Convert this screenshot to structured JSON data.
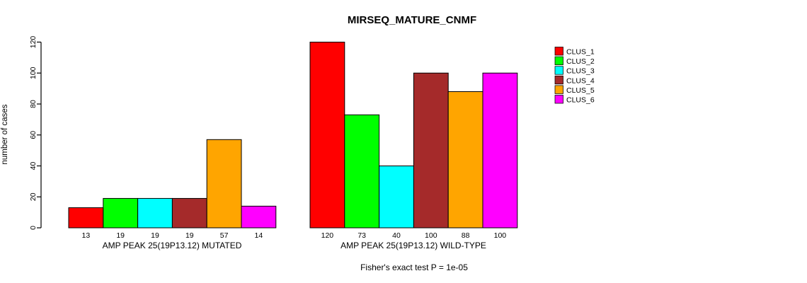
{
  "figure": {
    "title": "MIRSEQ_MATURE_CNMF",
    "ylabel": "number of cases",
    "footer": "Fisher's exact test P = 1e-05"
  },
  "chart_data": {
    "type": "bar",
    "title": "MIRSEQ_MATURE_CNMF",
    "xlabel": "",
    "ylabel": "number of cases",
    "ylim": [
      0,
      120
    ],
    "yticks": [
      0,
      20,
      40,
      60,
      80,
      100,
      120
    ],
    "grid": false,
    "legend_position": "right-outside",
    "series": [
      {
        "name": "CLUS_1",
        "color": "#FF0000"
      },
      {
        "name": "CLUS_2",
        "color": "#00FF00"
      },
      {
        "name": "CLUS_3",
        "color": "#00FFFF"
      },
      {
        "name": "CLUS_4",
        "color": "#A52A2A"
      },
      {
        "name": "CLUS_5",
        "color": "#FFA500"
      },
      {
        "name": "CLUS_6",
        "color": "#FF00FF"
      }
    ],
    "groups": [
      {
        "label": "AMP PEAK 25(19P13.12) MUTATED",
        "values": [
          13,
          19,
          19,
          19,
          57,
          14
        ]
      },
      {
        "label": "AMP PEAK 25(19P13.12) WILD-TYPE",
        "values": [
          120,
          73,
          40,
          100,
          88,
          100
        ]
      }
    ],
    "annotation": "Fisher's exact test P = 1e-05"
  }
}
